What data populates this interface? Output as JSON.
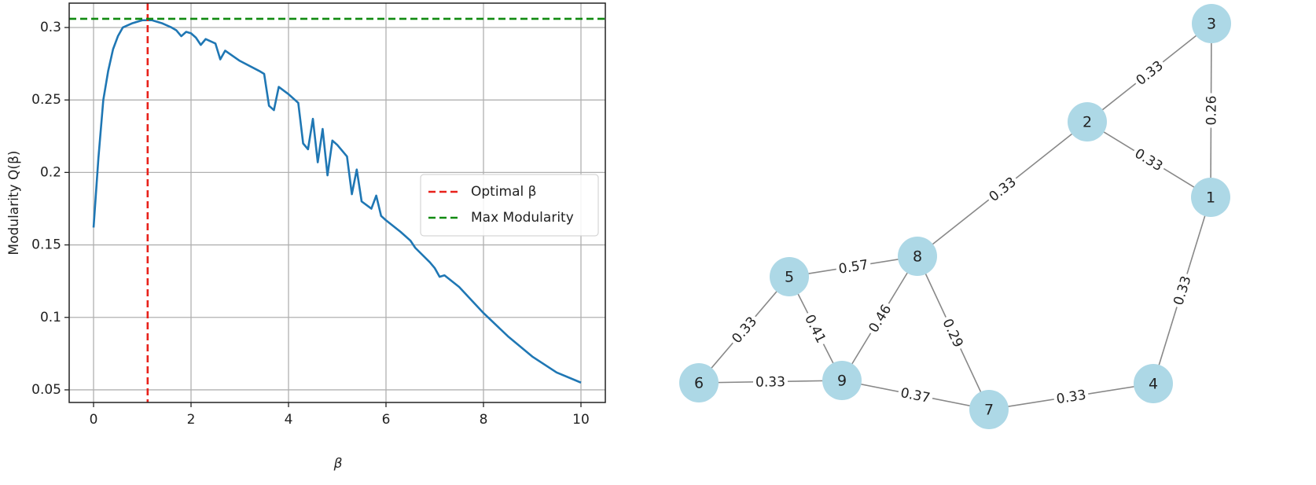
{
  "chart_data": {
    "type": "line",
    "x_label": "β",
    "y_label": "Modularity Q(β)",
    "x": [
      0,
      0.1,
      0.2,
      0.3,
      0.4,
      0.5,
      0.6,
      0.8,
      1.0,
      1.2,
      1.4,
      1.6,
      1.7,
      1.8,
      1.9,
      2.0,
      2.1,
      2.2,
      2.3,
      2.5,
      2.6,
      2.7,
      3.0,
      3.4,
      3.5,
      3.6,
      3.7,
      3.8,
      4.0,
      4.2,
      4.3,
      4.4,
      4.5,
      4.6,
      4.7,
      4.8,
      4.9,
      5.0,
      5.2,
      5.3,
      5.4,
      5.5,
      5.7,
      5.8,
      5.9,
      6.0,
      6.3,
      6.5,
      6.6,
      6.9,
      7.0,
      7.1,
      7.2,
      7.5,
      8.0,
      8.5,
      9.0,
      9.5,
      10.0
    ],
    "series": [
      {
        "color": "#1f77b4",
        "values": [
          0.162,
          0.21,
          0.25,
          0.27,
          0.285,
          0.294,
          0.3,
          0.303,
          0.305,
          0.305,
          0.303,
          0.3,
          0.298,
          0.294,
          0.297,
          0.296,
          0.293,
          0.288,
          0.292,
          0.289,
          0.278,
          0.284,
          0.277,
          0.27,
          0.268,
          0.246,
          0.243,
          0.259,
          0.254,
          0.248,
          0.22,
          0.216,
          0.237,
          0.207,
          0.23,
          0.198,
          0.222,
          0.219,
          0.211,
          0.185,
          0.202,
          0.18,
          0.175,
          0.184,
          0.17,
          0.167,
          0.159,
          0.153,
          0.148,
          0.138,
          0.134,
          0.128,
          0.129,
          0.121,
          0.103,
          0.087,
          0.073,
          0.062,
          0.055
        ]
      }
    ],
    "reference_lines": [
      {
        "name": "Optimal β",
        "color": "#e8211a",
        "axis": "x",
        "value": 1.11
      },
      {
        "name": "Max Modularity",
        "color": "#108a10",
        "axis": "y",
        "value": 0.306
      }
    ],
    "xlim": [
      -0.5,
      10.5
    ],
    "ylim": [
      0.0413,
      0.3168
    ],
    "xticks": [
      0,
      2,
      4,
      6,
      8,
      10
    ],
    "yticks": [
      0.05,
      0.1,
      0.15,
      0.2,
      0.25,
      0.3
    ],
    "grid": true,
    "legend": "center right"
  },
  "network": {
    "node_color": "#add8e6",
    "nodes": [
      {
        "label": "1"
      },
      {
        "label": "2"
      },
      {
        "label": "3"
      },
      {
        "label": "4"
      },
      {
        "label": "5"
      },
      {
        "label": "6"
      },
      {
        "label": "7"
      },
      {
        "label": "8"
      },
      {
        "label": "9"
      }
    ],
    "edges": [
      {
        "source": "3",
        "target": "2",
        "weight": 0.33
      },
      {
        "source": "3",
        "target": "1",
        "weight": 0.26
      },
      {
        "source": "2",
        "target": "1",
        "weight": 0.33
      },
      {
        "source": "2",
        "target": "8",
        "weight": 0.33
      },
      {
        "source": "1",
        "target": "4",
        "weight": 0.33
      },
      {
        "source": "8",
        "target": "5",
        "weight": 0.57
      },
      {
        "source": "8",
        "target": "9",
        "weight": 0.46
      },
      {
        "source": "8",
        "target": "7",
        "weight": 0.29
      },
      {
        "source": "5",
        "target": "6",
        "weight": 0.33
      },
      {
        "source": "5",
        "target": "9",
        "weight": 0.41
      },
      {
        "source": "6",
        "target": "9",
        "weight": 0.33
      },
      {
        "source": "9",
        "target": "7",
        "weight": 0.37
      },
      {
        "source": "7",
        "target": "4",
        "weight": 0.33
      }
    ]
  }
}
